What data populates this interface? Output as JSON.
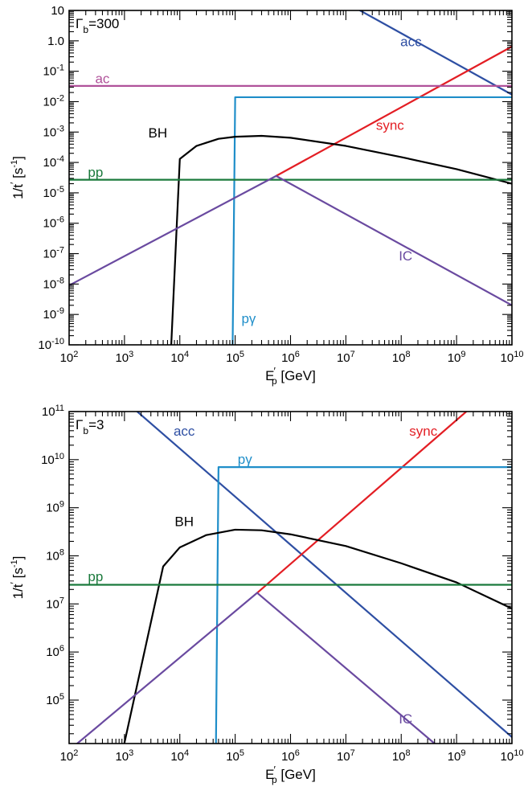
{
  "chart_data": [
    {
      "type": "line",
      "panel_label": "Γb=300",
      "panel_label_main": "Γ",
      "panel_label_sub": "b",
      "panel_label_rest": "=300",
      "xlabel": "E′p [GeV]",
      "xlabel_main": "E",
      "xlabel_prime": "′",
      "xlabel_sub": "p",
      "xlabel_rest": " [GeV]",
      "ylabel": "1/t′ [s-1]",
      "xscale": "log",
      "yscale": "log",
      "xlim": [
        100,
        10000000000
      ],
      "ylim": [
        1e-10,
        10
      ],
      "x_ticks": [
        {
          "exp": 2,
          "label_base": "10",
          "label_exp": "2"
        },
        {
          "exp": 3,
          "label_base": "10",
          "label_exp": "3"
        },
        {
          "exp": 4,
          "label_base": "10",
          "label_exp": "4"
        },
        {
          "exp": 5,
          "label_base": "10",
          "label_exp": "5"
        },
        {
          "exp": 6,
          "label_base": "10",
          "label_exp": "6"
        },
        {
          "exp": 7,
          "label_base": "10",
          "label_exp": "7"
        },
        {
          "exp": 8,
          "label_base": "10",
          "label_exp": "8"
        },
        {
          "exp": 9,
          "label_base": "10",
          "label_exp": "9"
        },
        {
          "exp": 10,
          "label_base": "10",
          "label_exp": "10"
        }
      ],
      "y_ticks": [
        {
          "exp": -10,
          "label_base": "10",
          "label_exp": "-10"
        },
        {
          "exp": -9,
          "label_base": "10",
          "label_exp": "-9"
        },
        {
          "exp": -8,
          "label_base": "10",
          "label_exp": "-8"
        },
        {
          "exp": -7,
          "label_base": "10",
          "label_exp": "-7"
        },
        {
          "exp": -6,
          "label_base": "10",
          "label_exp": "-6"
        },
        {
          "exp": -5,
          "label_base": "10",
          "label_exp": "-5"
        },
        {
          "exp": -4,
          "label_base": "10",
          "label_exp": "-4"
        },
        {
          "exp": -3,
          "label_base": "10",
          "label_exp": "-3"
        },
        {
          "exp": -2,
          "label_base": "10",
          "label_exp": "-2"
        },
        {
          "exp": -1,
          "label_base": "10",
          "label_exp": "-1"
        },
        {
          "exp": 0,
          "label": "1.0"
        },
        {
          "exp": 1,
          "label": "10"
        }
      ],
      "series": [
        {
          "name": "acc",
          "color": "#2e4fa3",
          "points": [
            [
              18000000.0,
              10
            ],
            [
              10000000000.0,
              0.017
            ]
          ]
        },
        {
          "name": "sync",
          "color": "#e31e24",
          "points": [
            [
              550000.0,
              3.6e-05
            ],
            [
              10000000000.0,
              0.65
            ]
          ]
        },
        {
          "name": "ac",
          "color": "#b0529a",
          "points": [
            [
              100,
              0.033
            ],
            [
              10000000000.0,
              0.033
            ]
          ]
        },
        {
          "name": "pγ",
          "color": "#1f8ec9",
          "points": [
            [
              90000.0,
              1e-10
            ],
            [
              100000.0,
              0.014
            ],
            [
              10000000000.0,
              0.014
            ]
          ]
        },
        {
          "name": "BH",
          "color": "#000000",
          "points": [
            [
              7000.0,
              1e-10
            ],
            [
              10000.0,
              0.00013
            ],
            [
              20000.0,
              0.00035
            ],
            [
              50000.0,
              0.0006
            ],
            [
              100000.0,
              0.0007
            ],
            [
              300000.0,
              0.00075
            ],
            [
              1000000.0,
              0.00065
            ],
            [
              10000000.0,
              0.00035
            ],
            [
              100000000.0,
              0.00015
            ],
            [
              1000000000.0,
              6e-05
            ],
            [
              10000000000.0,
              2e-05
            ]
          ]
        },
        {
          "name": "pp",
          "color": "#1b7a3c",
          "points": [
            [
              100,
              2.7e-05
            ],
            [
              10000000000.0,
              2.7e-05
            ]
          ]
        },
        {
          "name": "IC",
          "color": "#6a4aa0",
          "points": [
            [
              100,
              9e-09
            ],
            [
              550000.0,
              3.6e-05
            ],
            [
              10000000000.0,
              2e-09
            ]
          ]
        }
      ],
      "annotations": [
        {
          "text": "acc",
          "color": "#2e4fa3",
          "x": 150000000.0,
          "y": 0.9,
          "anchor": "middle"
        },
        {
          "text": "sync",
          "color": "#e31e24",
          "x": 35000000.0,
          "y": 0.0016,
          "anchor": "start"
        },
        {
          "text": "ac",
          "color": "#b0529a",
          "x": 400,
          "y": 0.055,
          "anchor": "middle"
        },
        {
          "text": "BH",
          "color": "#000000",
          "x": 4000.0,
          "y": 0.0009,
          "anchor": "middle"
        },
        {
          "text": "pp",
          "color": "#1b7a3c",
          "x": 300,
          "y": 4.5e-05,
          "anchor": "middle"
        },
        {
          "text": "IC",
          "color": "#6a4aa0",
          "x": 120000000.0,
          "y": 8e-08,
          "anchor": "middle"
        },
        {
          "text": "pγ",
          "color": "#1f8ec9",
          "x": 130000.0,
          "y": 7e-10,
          "anchor": "start"
        }
      ]
    },
    {
      "type": "line",
      "panel_label": "Γb=3",
      "panel_label_main": "Γ",
      "panel_label_sub": "b",
      "panel_label_rest": "=3",
      "xlabel": "E′p [GeV]",
      "xlabel_main": "E",
      "xlabel_prime": "′",
      "xlabel_sub": "p",
      "xlabel_rest": " [GeV]",
      "ylabel": "1/t′ [s-1]",
      "xscale": "log",
      "yscale": "log",
      "xlim": [
        100,
        10000000000
      ],
      "ylim": [
        12500,
        100000000000
      ],
      "x_ticks": [
        {
          "exp": 2,
          "label_base": "10",
          "label_exp": "2"
        },
        {
          "exp": 3,
          "label_base": "10",
          "label_exp": "3"
        },
        {
          "exp": 4,
          "label_base": "10",
          "label_exp": "4"
        },
        {
          "exp": 5,
          "label_base": "10",
          "label_exp": "5"
        },
        {
          "exp": 6,
          "label_base": "10",
          "label_exp": "6"
        },
        {
          "exp": 7,
          "label_base": "10",
          "label_exp": "7"
        },
        {
          "exp": 8,
          "label_base": "10",
          "label_exp": "8"
        },
        {
          "exp": 9,
          "label_base": "10",
          "label_exp": "9"
        },
        {
          "exp": 10,
          "label_base": "10",
          "label_exp": "10"
        }
      ],
      "y_ticks": [
        {
          "exp": 5,
          "label_base": "10",
          "label_exp": "5"
        },
        {
          "exp": 6,
          "label_base": "10",
          "label_exp": "6"
        },
        {
          "exp": 7,
          "label_base": "10",
          "label_exp": "7"
        },
        {
          "exp": 8,
          "label_base": "10",
          "label_exp": "8"
        },
        {
          "exp": 9,
          "label_base": "10",
          "label_exp": "9"
        },
        {
          "exp": 10,
          "label_base": "10",
          "label_exp": "10"
        },
        {
          "exp": 11,
          "label_base": "10",
          "label_exp": "11"
        }
      ],
      "series": [
        {
          "name": "acc",
          "color": "#2e4fa3",
          "points": [
            [
              1700.0,
              100000000000.0
            ],
            [
              10000000000.0,
              17000.0
            ]
          ]
        },
        {
          "name": "sync",
          "color": "#e31e24",
          "points": [
            [
              250000.0,
              17000000.0
            ],
            [
              1500000000.0,
              100000000000.0
            ]
          ]
        },
        {
          "name": "pγ",
          "color": "#1f8ec9",
          "points": [
            [
              45000.0,
              12500
            ],
            [
              50000.0,
              7000000000.0
            ],
            [
              10000000000.0,
              7000000000.0
            ]
          ]
        },
        {
          "name": "BH",
          "color": "#000000",
          "points": [
            [
              1000.0,
              13000
            ],
            [
              5000.0,
              60000000.0
            ],
            [
              10000.0,
              150000000.0
            ],
            [
              30000.0,
              270000000.0
            ],
            [
              100000.0,
              350000000.0
            ],
            [
              300000.0,
              340000000.0
            ],
            [
              1000000.0,
              280000000.0
            ],
            [
              10000000.0,
              160000000.0
            ],
            [
              100000000.0,
              70000000.0
            ],
            [
              1000000000.0,
              28000000.0
            ],
            [
              10000000000.0,
              8000000.0
            ]
          ]
        },
        {
          "name": "pp",
          "color": "#1b7a3c",
          "points": [
            [
              100,
              25000000.0
            ],
            [
              10000000000.0,
              25000000.0
            ]
          ]
        },
        {
          "name": "IC",
          "color": "#6a4aa0",
          "points": [
            [
              140,
              12500
            ],
            [
              250000.0,
              17000000.0
            ],
            [
              400000000.0,
              12500
            ]
          ]
        }
      ],
      "annotations": [
        {
          "text": "acc",
          "color": "#2e4fa3",
          "x": 12000.0,
          "y": 38000000000.0,
          "anchor": "middle"
        },
        {
          "text": "sync",
          "color": "#e31e24",
          "x": 450000000.0,
          "y": 38000000000.0,
          "anchor": "end"
        },
        {
          "text": "pγ",
          "color": "#1f8ec9",
          "x": 150000.0,
          "y": 10000000000.0,
          "anchor": "middle"
        },
        {
          "text": "BH",
          "color": "#000000",
          "x": 12000.0,
          "y": 500000000.0,
          "anchor": "middle"
        },
        {
          "text": "pp",
          "color": "#1b7a3c",
          "x": 300,
          "y": 36000000.0,
          "anchor": "middle"
        },
        {
          "text": "IC",
          "color": "#6a4aa0",
          "x": 120000000.0,
          "y": 40000.0,
          "anchor": "middle"
        }
      ]
    }
  ]
}
